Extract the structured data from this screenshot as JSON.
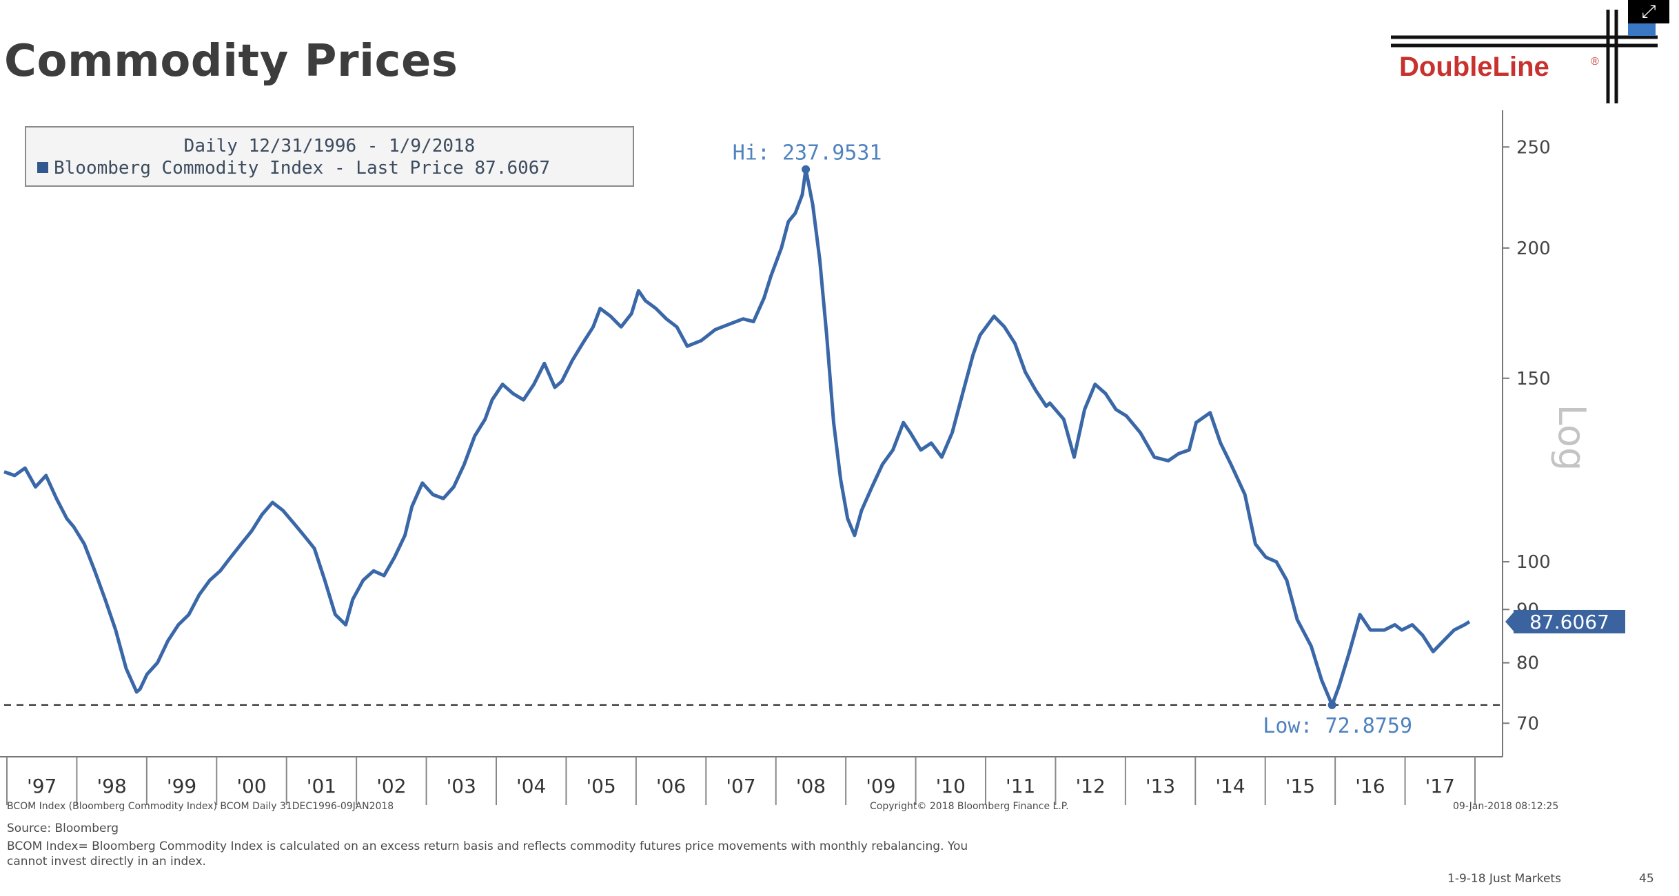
{
  "header": {
    "title": "Commodity Prices"
  },
  "logo": {
    "text": "DoubleLine",
    "mark": "®",
    "color": "#c8322e"
  },
  "window": {
    "expand_icon": "expand-icon",
    "expand_glyph": "⤢"
  },
  "legend": {
    "line1": "Daily 12/31/1996 - 1/9/2018",
    "line2": "Bloomberg Commodity Index - Last Price 87.6067"
  },
  "chart_data": {
    "type": "line",
    "series": [
      {
        "name": "Bloomberg Commodity Index",
        "color": "#3a67a8",
        "points": [
          [
            1997.0,
            122
          ],
          [
            1997.15,
            121
          ],
          [
            1997.3,
            123
          ],
          [
            1997.45,
            118
          ],
          [
            1997.6,
            121
          ],
          [
            1997.75,
            115
          ],
          [
            1997.9,
            110
          ],
          [
            1998.0,
            108
          ],
          [
            1998.15,
            104
          ],
          [
            1998.3,
            98
          ],
          [
            1998.45,
            92
          ],
          [
            1998.6,
            86
          ],
          [
            1998.75,
            79
          ],
          [
            1998.9,
            75
          ],
          [
            1998.95,
            75.5
          ],
          [
            1999.05,
            78
          ],
          [
            1999.2,
            80
          ],
          [
            1999.35,
            84
          ],
          [
            1999.5,
            87
          ],
          [
            1999.65,
            89
          ],
          [
            1999.8,
            93
          ],
          [
            1999.95,
            96
          ],
          [
            2000.1,
            98
          ],
          [
            2000.25,
            101
          ],
          [
            2000.4,
            104
          ],
          [
            2000.55,
            107
          ],
          [
            2000.7,
            111
          ],
          [
            2000.85,
            114
          ],
          [
            2001.0,
            112
          ],
          [
            2001.15,
            109
          ],
          [
            2001.3,
            106
          ],
          [
            2001.45,
            103
          ],
          [
            2001.6,
            96
          ],
          [
            2001.75,
            89
          ],
          [
            2001.9,
            87
          ],
          [
            2002.0,
            92
          ],
          [
            2002.15,
            96
          ],
          [
            2002.3,
            98
          ],
          [
            2002.45,
            97
          ],
          [
            2002.6,
            101
          ],
          [
            2002.75,
            106
          ],
          [
            2002.85,
            113
          ],
          [
            2003.0,
            119
          ],
          [
            2003.15,
            116
          ],
          [
            2003.3,
            115
          ],
          [
            2003.45,
            118
          ],
          [
            2003.6,
            124
          ],
          [
            2003.75,
            132
          ],
          [
            2003.9,
            137
          ],
          [
            2004.0,
            143
          ],
          [
            2004.15,
            148
          ],
          [
            2004.3,
            145
          ],
          [
            2004.45,
            143
          ],
          [
            2004.6,
            148
          ],
          [
            2004.75,
            155
          ],
          [
            2004.9,
            147
          ],
          [
            2005.0,
            149
          ],
          [
            2005.15,
            156
          ],
          [
            2005.3,
            162
          ],
          [
            2005.45,
            168
          ],
          [
            2005.55,
            175
          ],
          [
            2005.7,
            172
          ],
          [
            2005.85,
            168
          ],
          [
            2006.0,
            173
          ],
          [
            2006.1,
            182
          ],
          [
            2006.2,
            178
          ],
          [
            2006.35,
            175
          ],
          [
            2006.5,
            171
          ],
          [
            2006.65,
            168
          ],
          [
            2006.8,
            161
          ],
          [
            2007.0,
            163
          ],
          [
            2007.2,
            167
          ],
          [
            2007.4,
            169
          ],
          [
            2007.6,
            171
          ],
          [
            2007.75,
            170
          ],
          [
            2007.9,
            179
          ],
          [
            2008.0,
            188
          ],
          [
            2008.15,
            200
          ],
          [
            2008.25,
            212
          ],
          [
            2008.35,
            216
          ],
          [
            2008.45,
            225
          ],
          [
            2008.5,
            237.9531
          ],
          [
            2008.6,
            220
          ],
          [
            2008.7,
            195
          ],
          [
            2008.8,
            165
          ],
          [
            2008.9,
            136
          ],
          [
            2009.0,
            120
          ],
          [
            2009.1,
            110
          ],
          [
            2009.2,
            106
          ],
          [
            2009.3,
            112
          ],
          [
            2009.45,
            118
          ],
          [
            2009.6,
            124
          ],
          [
            2009.75,
            128
          ],
          [
            2009.9,
            136
          ],
          [
            2010.0,
            133
          ],
          [
            2010.15,
            128
          ],
          [
            2010.3,
            130
          ],
          [
            2010.45,
            126
          ],
          [
            2010.6,
            133
          ],
          [
            2010.75,
            145
          ],
          [
            2010.9,
            158
          ],
          [
            2011.0,
            165
          ],
          [
            2011.2,
            172
          ],
          [
            2011.35,
            168
          ],
          [
            2011.5,
            162
          ],
          [
            2011.65,
            152
          ],
          [
            2011.8,
            146
          ],
          [
            2011.95,
            141
          ],
          [
            2012.0,
            142
          ],
          [
            2012.2,
            137
          ],
          [
            2012.35,
            126
          ],
          [
            2012.5,
            140
          ],
          [
            2012.65,
            148
          ],
          [
            2012.8,
            145
          ],
          [
            2012.95,
            140
          ],
          [
            2013.1,
            138
          ],
          [
            2013.3,
            133
          ],
          [
            2013.5,
            126
          ],
          [
            2013.7,
            125
          ],
          [
            2013.85,
            127
          ],
          [
            2014.0,
            128
          ],
          [
            2014.1,
            136
          ],
          [
            2014.3,
            139
          ],
          [
            2014.45,
            130
          ],
          [
            2014.6,
            124
          ],
          [
            2014.8,
            116
          ],
          [
            2014.95,
            104
          ],
          [
            2015.1,
            101
          ],
          [
            2015.25,
            100
          ],
          [
            2015.4,
            96
          ],
          [
            2015.55,
            88
          ],
          [
            2015.75,
            83
          ],
          [
            2015.9,
            77
          ],
          [
            2016.05,
            72.8759
          ],
          [
            2016.15,
            76
          ],
          [
            2016.3,
            82
          ],
          [
            2016.45,
            89
          ],
          [
            2016.6,
            86
          ],
          [
            2016.8,
            86
          ],
          [
            2016.95,
            87
          ],
          [
            2017.05,
            86
          ],
          [
            2017.2,
            87
          ],
          [
            2017.35,
            85
          ],
          [
            2017.5,
            82
          ],
          [
            2017.65,
            84
          ],
          [
            2017.8,
            86
          ],
          [
            2017.95,
            87
          ],
          [
            2018.02,
            87.6067
          ]
        ]
      }
    ],
    "x_tick_labels": [
      "'97",
      "'98",
      "'99",
      "'00",
      "'01",
      "'02",
      "'03",
      "'04",
      "'05",
      "'06",
      "'07",
      "'08",
      "'09",
      "'10",
      "'11",
      "'12",
      "'13",
      "'14",
      "'15",
      "'16",
      "'17"
    ],
    "y_ticks": [
      70,
      80,
      90,
      100,
      150,
      200,
      250
    ],
    "y_tick_labels": [
      "70",
      "80",
      "90",
      "100",
      "150",
      "200",
      "250"
    ],
    "y_scale": "log",
    "ylabel": "Log",
    "ylim": [
      65,
      265
    ],
    "xlim": [
      1997.0,
      2018.1
    ],
    "hi_label": "Hi: 237.9531",
    "hi_value": 237.9531,
    "low_label": "Low: 72.8759",
    "low_value": 72.8759,
    "last_label": "87.6067",
    "last_value": 87.6067,
    "label_color": "#4f82bf",
    "last_badge_color": "#3a63a0",
    "grid": false,
    "legend_position": "top-left"
  },
  "footer": {
    "left_meta": "BCOM Index (Bloomberg Commodity Index) BCOM  Daily 31DEC1996-09JAN2018",
    "copyright": "Copyright© 2018 Bloomberg Finance L.P.",
    "timestamp": "09-Jan-2018 08:12:25",
    "source": "Source: Bloomberg",
    "note_line1": "BCOM Index= Bloomberg Commodity Index is calculated on an excess return basis and reflects commodity futures price movements with monthly rebalancing. You",
    "note_line2": "cannot invest directly in an index.",
    "page_label": "1-9-18 Just Markets",
    "page_number": "45"
  }
}
